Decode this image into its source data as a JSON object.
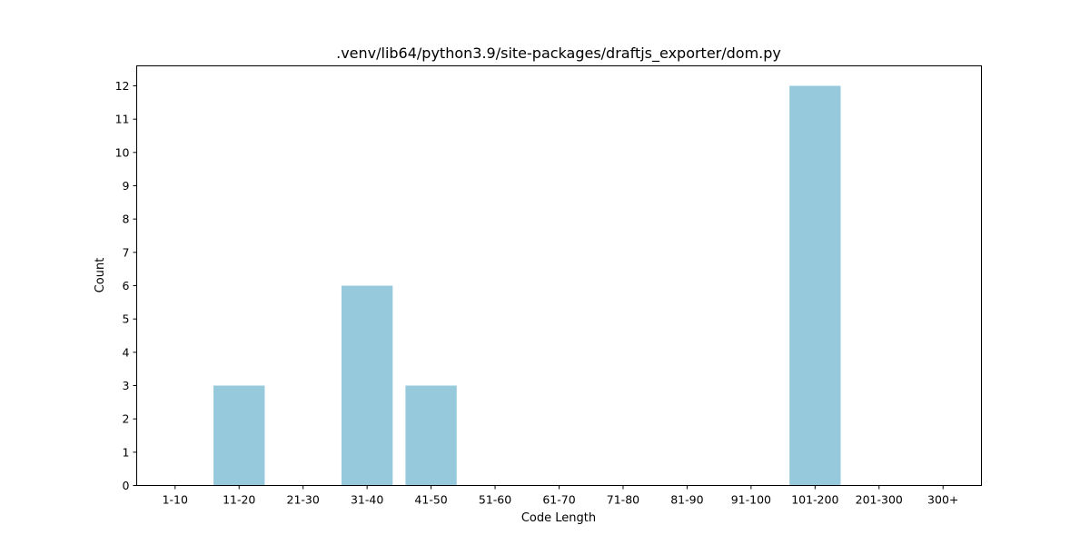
{
  "chart_data": {
    "type": "bar",
    "title": ".venv/lib64/python3.9/site-packages/draftjs_exporter/dom.py",
    "xlabel": "Code Length",
    "ylabel": "Count",
    "categories": [
      "1-10",
      "11-20",
      "21-30",
      "31-40",
      "41-50",
      "51-60",
      "61-70",
      "71-80",
      "81-90",
      "91-100",
      "101-200",
      "201-300",
      "300+"
    ],
    "values": [
      0,
      3,
      0,
      6,
      3,
      0,
      0,
      0,
      0,
      0,
      12,
      0,
      0
    ],
    "ylim": [
      0,
      12.6
    ],
    "yticks": [
      0,
      1,
      2,
      3,
      4,
      5,
      6,
      7,
      8,
      9,
      10,
      11,
      12
    ],
    "bar_color": "#96c9dc",
    "grid": false,
    "legend": "none"
  }
}
